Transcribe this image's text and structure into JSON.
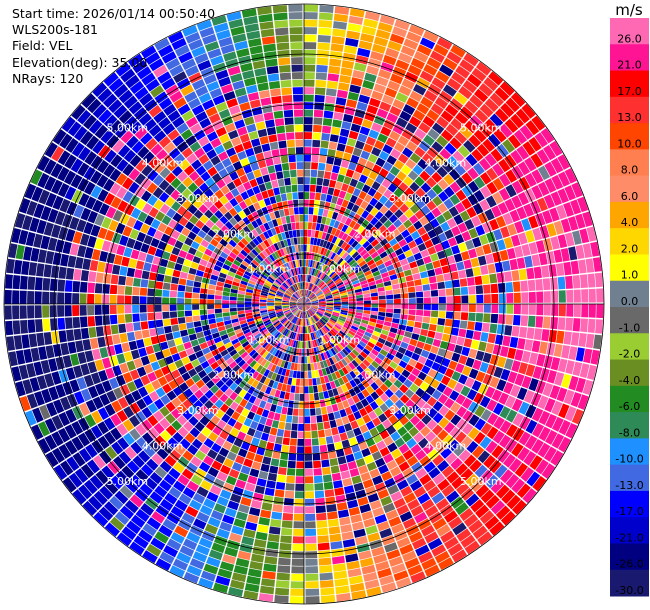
{
  "info": {
    "start_time": "Start time: 2026/01/14 00:50:40",
    "instrument": "WLS200s-181",
    "field": "Field: VEL",
    "elevation": "Elevation(deg): 35.00",
    "nrays": "NRays: 120"
  },
  "chart_data": {
    "type": "polar-ppi",
    "field": "VEL",
    "units": "m/s",
    "nrays": 120,
    "elevation_deg": 35.0,
    "max_range_km": 6.0,
    "range_rings_km": [
      1,
      2,
      3,
      4,
      5,
      6
    ],
    "ring_labels": [
      "1.00km",
      "2.00km",
      "3.00km",
      "4.00km",
      "5.00km"
    ],
    "colorbar": {
      "title": "m/s",
      "tick_labels": [
        "26.0",
        "21.0",
        "17.0",
        "13.0",
        "10.0",
        "8.0",
        "6.0",
        "4.0",
        "2.0",
        "1.0",
        "0.0",
        "-1.0",
        "-2.0",
        "-4.0",
        "-6.0",
        "-8.0",
        "-10.0",
        "-13.0",
        "-17.0",
        "-21.0",
        "-26.0",
        "-30.0"
      ],
      "bounds": [
        -30,
        -26,
        -21,
        -17,
        -13,
        -10,
        -8,
        -6,
        -4,
        -2,
        -1,
        0,
        1,
        2,
        4,
        6,
        8,
        10,
        13,
        17,
        21,
        26,
        30
      ],
      "colors": [
        "#191970",
        "#000080",
        "#0000cd",
        "#0000ff",
        "#4169e1",
        "#1e90ff",
        "#2e8b57",
        "#228b22",
        "#6b8e23",
        "#9acd32",
        "#696969",
        "#708090",
        "#ffff00",
        "#ffd700",
        "#ffa500",
        "#ff8c69",
        "#ff7f50",
        "#ff4500",
        "#ff3030",
        "#ff0000",
        "#ff1493",
        "#ff69b4"
      ]
    },
    "wind_model": {
      "speed_ms": 26.0,
      "from_azimuth_deg": 90.0,
      "noise_onset_km": 4.3
    }
  }
}
